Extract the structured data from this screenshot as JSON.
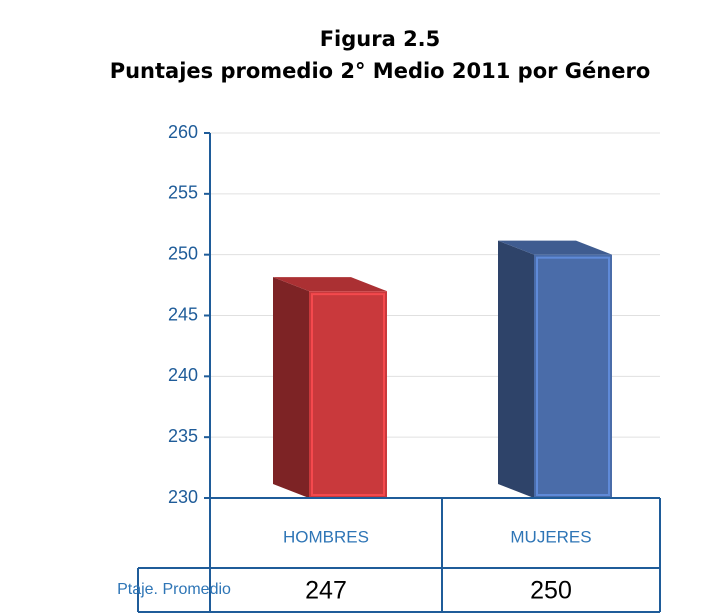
{
  "chart_data": {
    "type": "bar3d",
    "title": "Figura 2.5",
    "subtitle": "Puntajes promedio 2° Medio 2011 por Género",
    "categories": [
      "HOMBRES",
      "MUJERES"
    ],
    "series": [
      {
        "name": "Ptaje. Promedio",
        "values": [
          247,
          250
        ]
      }
    ],
    "colors": [
      "#c9393c",
      "#4a6ca9"
    ],
    "ylim": [
      230,
      260
    ],
    "yticks": [
      230,
      235,
      240,
      245,
      250,
      255,
      260
    ],
    "grid": true
  }
}
